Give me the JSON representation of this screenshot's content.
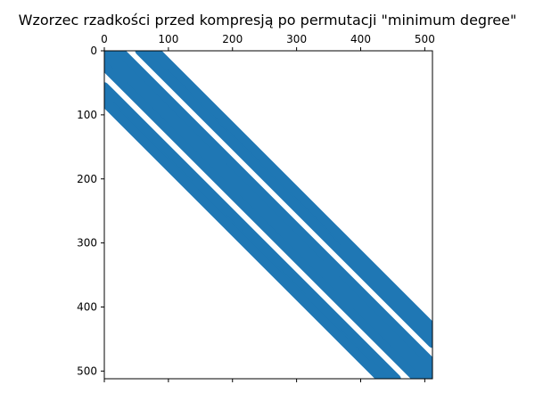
{
  "chart_data": {
    "type": "spy",
    "title": "Wzorzec rzadkości przed kompresją po permutacji \"minimum degree\"",
    "matrix_size": 512,
    "x_ticks": [
      0,
      100,
      200,
      300,
      400,
      500
    ],
    "y_ticks": [
      0,
      100,
      200,
      300,
      400,
      500
    ],
    "xlim": [
      0,
      512
    ],
    "ylim": [
      512,
      0
    ],
    "x_axis_position": "top",
    "grid": false,
    "mark_color": "#1f77b4",
    "bands": [
      {
        "name": "band-upper",
        "col_offset_min": 55,
        "col_offset_max": 80
      },
      {
        "name": "band-diagonal",
        "col_offset_min": -24,
        "col_offset_max": 24
      },
      {
        "name": "band-lower",
        "col_offset_min": -80,
        "col_offset_max": -56
      }
    ]
  }
}
